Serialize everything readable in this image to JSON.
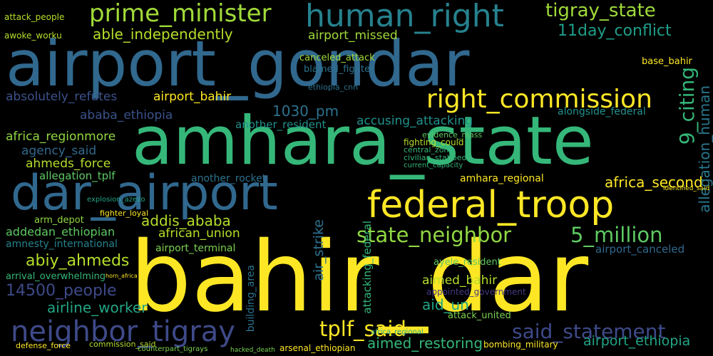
{
  "words": [
    {
      "text": "bahir_dar",
      "color": "#fde725"
    },
    {
      "text": "amhara_state",
      "color": "#35b779"
    },
    {
      "text": "airport_gondar",
      "color": "#31688e"
    },
    {
      "text": "dar_airport",
      "color": "#31688e"
    },
    {
      "text": "federal_troop",
      "color": "#fde725"
    },
    {
      "text": "human_right",
      "color": "#26828e"
    },
    {
      "text": "prime_minister",
      "color": "#a0da39"
    },
    {
      "text": "right_commission",
      "color": "#fde725"
    },
    {
      "text": "neighbor_tigray",
      "color": "#3e4a89"
    },
    {
      "text": "state_neighbor",
      "color": "#90d743"
    },
    {
      "text": "5_million",
      "color": "#5ec962"
    },
    {
      "text": "said_statement",
      "color": "#3e4a89"
    },
    {
      "text": "tplf_said",
      "color": "#fde725"
    },
    {
      "text": "tigray_state",
      "color": "#a0da39"
    },
    {
      "text": "11day_conflict",
      "color": "#1f9e89"
    },
    {
      "text": "able_independently",
      "color": "#b5de2b"
    },
    {
      "text": "addis_ababa",
      "color": "#b5de2b"
    },
    {
      "text": "africa_second",
      "color": "#fde725"
    },
    {
      "text": "abiy_ahmeds",
      "color": "#b5de2b"
    },
    {
      "text": "14500_people",
      "color": "#3e4a89"
    },
    {
      "text": "airline_worker",
      "color": "#21a585"
    },
    {
      "text": "aimed_restoring",
      "color": "#35b779"
    },
    {
      "text": "airport_ethiopia",
      "color": "#21a585"
    },
    {
      "text": "airport_missed",
      "color": "#a0da39"
    },
    {
      "text": "absolutely_refutes",
      "color": "#3b528b"
    },
    {
      "text": "airport_bahir",
      "color": "#fde725"
    },
    {
      "text": "ababa_ethiopia",
      "color": "#3b528b"
    },
    {
      "text": "1030_pm",
      "color": "#2c728e"
    },
    {
      "text": "africa_regionmore",
      "color": "#90d743"
    },
    {
      "text": "agency_said",
      "color": "#31688e"
    },
    {
      "text": "ahmeds_force",
      "color": "#b5de2b"
    },
    {
      "text": "allegation_tplf",
      "color": "#5ec962"
    },
    {
      "text": "addedan_ethiopian",
      "color": "#5ec962"
    },
    {
      "text": "amnesty_international",
      "color": "#26828e"
    },
    {
      "text": "african_union",
      "color": "#b5de2b"
    },
    {
      "text": "airport_terminal",
      "color": "#7ad151"
    },
    {
      "text": "accusing_attacking",
      "color": "#21918c"
    },
    {
      "text": "another_resident",
      "color": "#21918c"
    },
    {
      "text": "alongside_federal",
      "color": "#21918c"
    },
    {
      "text": "amhara_regional",
      "color": "#fde725"
    },
    {
      "text": "airport_canceled",
      "color": "#31688e"
    },
    {
      "text": "arrival_overwhelming",
      "color": "#35b779"
    },
    {
      "text": "aimed_bahir",
      "color": "#b5de2b"
    },
    {
      "text": "aid_un",
      "color": "#21a585"
    },
    {
      "text": "ayele_resident",
      "color": "#5ec962"
    },
    {
      "text": "appointed_government",
      "color": "#443983"
    },
    {
      "text": "attack_united",
      "color": "#7ad151"
    },
    {
      "text": "canceled_attack",
      "color": "#a0da39"
    },
    {
      "text": "blamed_fighter",
      "color": "#2c728e"
    },
    {
      "text": "ethiopia_cnn",
      "color": "#2c728e"
    },
    {
      "text": "another_rocket",
      "color": "#2c728e"
    },
    {
      "text": "attack_people",
      "color": "#b5de2b"
    },
    {
      "text": "awoke_worku",
      "color": "#b5de2b"
    },
    {
      "text": "base_bahir",
      "color": "#fde725"
    },
    {
      "text": "arm_depot",
      "color": "#90d743"
    },
    {
      "text": "fighter_loyal",
      "color": "#fde725"
    },
    {
      "text": "9_citing",
      "color": "#35b779"
    },
    {
      "text": "allegation_human",
      "color": "#2a788e"
    },
    {
      "text": "air_strike",
      "color": "#2c728e"
    },
    {
      "text": "attacking_federal",
      "color": "#35b779"
    },
    {
      "text": "building_area",
      "color": "#2c728e"
    },
    {
      "text": "defense_force",
      "color": "#fde725"
    },
    {
      "text": "commission_said",
      "color": "#b5de2b"
    },
    {
      "text": "arsenal_ethiopian",
      "color": "#fde725"
    },
    {
      "text": "bombing_military",
      "color": "#fde725"
    },
    {
      "text": "evidence_mass",
      "color": "#5ec962"
    },
    {
      "text": "fighting_could",
      "color": "#b5de2b"
    },
    {
      "text": "central_zone",
      "color": "#35b779"
    },
    {
      "text": "civilian_stabbed",
      "color": "#35b779"
    },
    {
      "text": "current_capacity",
      "color": "#35b779"
    },
    {
      "text": "africa_regional",
      "color": "#21a585"
    },
    {
      "text": "explosion_azezo",
      "color": "#21a585"
    },
    {
      "text": "counterpart_tigrays",
      "color": "#7ad151"
    },
    {
      "text": "hacked_death",
      "color": "#7ad151"
    },
    {
      "text": "identified_said",
      "color": "#fde725"
    },
    {
      "text": "horn_africa",
      "color": "#fde725"
    }
  ]
}
